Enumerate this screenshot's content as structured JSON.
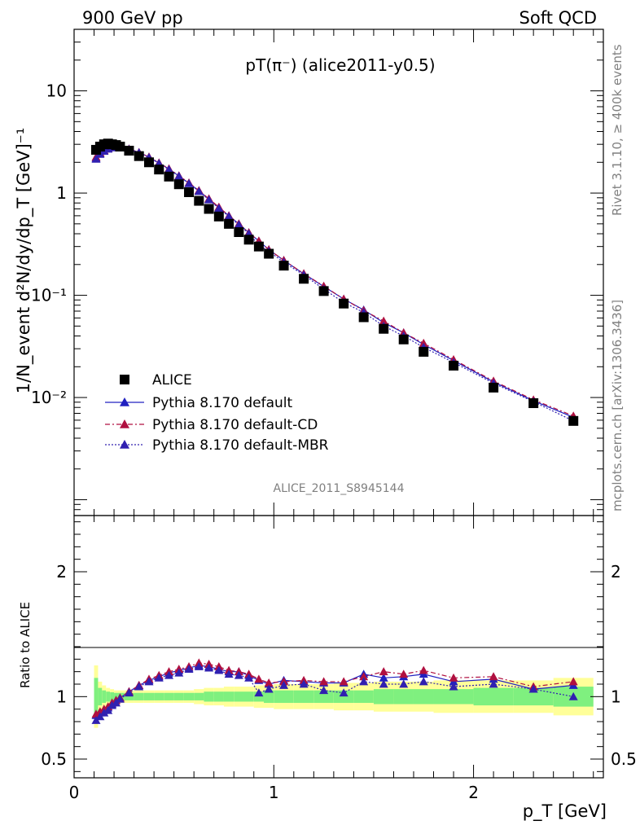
{
  "header": {
    "left": "900 GeV pp",
    "right": "Soft QCD"
  },
  "plot_title": "pT(π⁻) (alice2011-y0.5)",
  "analysis_label": "ALICE_2011_S8945144",
  "side_labels": {
    "rivet": "Rivet 3.1.10, ≥ 400k events",
    "mcplots": "mcplots.cern.ch [arXiv:1306.3436]"
  },
  "chart_data": [
    {
      "type": "scatter",
      "panel": "main",
      "ylabel": "1/N_event d²N/dy/dp_T [GeV]⁻¹",
      "yscale": "log",
      "ylim": [
        0.0007,
        40
      ],
      "xlim": [
        0,
        2.65
      ],
      "y_ticks": [
        "10⁻²",
        "10⁻¹",
        "1",
        "10"
      ],
      "legend_position": "lower-left",
      "x": [
        0.11,
        0.13,
        0.15,
        0.17,
        0.19,
        0.21,
        0.23,
        0.275,
        0.325,
        0.375,
        0.425,
        0.475,
        0.525,
        0.575,
        0.625,
        0.675,
        0.725,
        0.775,
        0.825,
        0.875,
        0.925,
        0.975,
        1.05,
        1.15,
        1.25,
        1.35,
        1.45,
        1.55,
        1.65,
        1.75,
        1.9,
        2.1,
        2.3,
        2.5
      ],
      "series": [
        {
          "name": "ALICE",
          "color": "#000000",
          "marker": "square",
          "values": [
            2.65,
            2.85,
            3.0,
            3.05,
            3.0,
            2.95,
            2.85,
            2.6,
            2.3,
            2.0,
            1.7,
            1.45,
            1.22,
            1.02,
            0.84,
            0.7,
            0.59,
            0.5,
            0.415,
            0.35,
            0.3,
            0.255,
            0.195,
            0.145,
            0.11,
            0.083,
            0.061,
            0.047,
            0.037,
            0.028,
            0.0205,
            0.0125,
            0.0088,
            0.0059
          ]
        },
        {
          "name": "Pythia 8.170 default",
          "color": "#2020c0",
          "marker": "triangle",
          "line": "solid",
          "values": [
            2.2,
            2.45,
            2.6,
            2.72,
            2.8,
            2.82,
            2.8,
            2.7,
            2.5,
            2.25,
            1.97,
            1.72,
            1.47,
            1.25,
            1.05,
            0.87,
            0.72,
            0.6,
            0.5,
            0.41,
            0.34,
            0.28,
            0.22,
            0.162,
            0.122,
            0.092,
            0.072,
            0.054,
            0.043,
            0.033,
            0.023,
            0.0142,
            0.0093,
            0.0064
          ]
        },
        {
          "name": "Pythia 8.170 default-CD",
          "color": "#b01040",
          "marker": "triangle",
          "line": "dashdot",
          "values": [
            2.25,
            2.48,
            2.62,
            2.74,
            2.82,
            2.83,
            2.8,
            2.7,
            2.5,
            2.26,
            1.98,
            1.73,
            1.48,
            1.26,
            1.06,
            0.88,
            0.73,
            0.6,
            0.5,
            0.41,
            0.34,
            0.28,
            0.22,
            0.163,
            0.123,
            0.092,
            0.071,
            0.056,
            0.043,
            0.034,
            0.0235,
            0.0145,
            0.0095,
            0.0066
          ]
        },
        {
          "name": "Pythia 8.170 default-MBR",
          "color": "#3020b0",
          "marker": "triangle",
          "line": "dotted",
          "values": [
            2.15,
            2.4,
            2.57,
            2.7,
            2.78,
            2.8,
            2.78,
            2.68,
            2.48,
            2.23,
            1.95,
            1.7,
            1.46,
            1.24,
            1.04,
            0.86,
            0.71,
            0.59,
            0.49,
            0.4,
            0.31,
            0.27,
            0.21,
            0.158,
            0.115,
            0.085,
            0.068,
            0.05,
            0.04,
            0.031,
            0.022,
            0.0138,
            0.0091,
            0.0059
          ]
        }
      ]
    },
    {
      "type": "scatter",
      "panel": "ratio",
      "xlabel": "p_T [GeV]",
      "ylabel": "Ratio to ALICE",
      "ylim": [
        0.35,
        2.45
      ],
      "xlim": [
        0,
        2.65
      ],
      "x_ticks": [
        "0",
        "1",
        "2"
      ],
      "y_ticks": [
        "0.5",
        "1",
        "2"
      ],
      "x": [
        0.11,
        0.13,
        0.15,
        0.17,
        0.19,
        0.21,
        0.23,
        0.275,
        0.325,
        0.375,
        0.425,
        0.475,
        0.525,
        0.575,
        0.625,
        0.675,
        0.725,
        0.775,
        0.825,
        0.875,
        0.925,
        0.975,
        1.05,
        1.15,
        1.25,
        1.35,
        1.45,
        1.55,
        1.65,
        1.75,
        1.9,
        2.1,
        2.3,
        2.5
      ],
      "band_edges": [
        0.1,
        0.12,
        0.14,
        0.16,
        0.18,
        0.2,
        0.22,
        0.25,
        0.3,
        0.35,
        0.4,
        0.45,
        0.5,
        0.55,
        0.6,
        0.65,
        0.7,
        0.75,
        0.8,
        0.85,
        0.9,
        0.95,
        1.0,
        1.1,
        1.2,
        1.3,
        1.4,
        1.5,
        1.6,
        1.7,
        1.8,
        2.0,
        2.2,
        2.4,
        2.6
      ],
      "band_inner": [
        0.15,
        0.07,
        0.05,
        0.04,
        0.035,
        0.03,
        0.03,
        0.03,
        0.03,
        0.03,
        0.03,
        0.03,
        0.03,
        0.03,
        0.03,
        0.04,
        0.04,
        0.04,
        0.04,
        0.04,
        0.04,
        0.05,
        0.05,
        0.05,
        0.05,
        0.05,
        0.05,
        0.06,
        0.06,
        0.06,
        0.06,
        0.07,
        0.07,
        0.08
      ],
      "band_outer": [
        0.25,
        0.12,
        0.09,
        0.07,
        0.06,
        0.05,
        0.05,
        0.05,
        0.05,
        0.05,
        0.05,
        0.05,
        0.05,
        0.05,
        0.06,
        0.07,
        0.07,
        0.08,
        0.08,
        0.08,
        0.09,
        0.09,
        0.1,
        0.1,
        0.1,
        0.11,
        0.11,
        0.12,
        0.12,
        0.12,
        0.13,
        0.13,
        0.13,
        0.15
      ],
      "band_colors": {
        "inner": "#7ff07f",
        "outer": "#ffff99"
      },
      "series": [
        {
          "name": "Pythia 8.170 default",
          "color": "#2020c0",
          "values": [
            0.85,
            0.87,
            0.89,
            0.91,
            0.94,
            0.97,
            0.99,
            1.04,
            1.09,
            1.13,
            1.16,
            1.19,
            1.21,
            1.23,
            1.25,
            1.24,
            1.22,
            1.2,
            1.2,
            1.17,
            1.13,
            1.1,
            1.13,
            1.12,
            1.11,
            1.11,
            1.18,
            1.15,
            1.16,
            1.18,
            1.12,
            1.14,
            1.06,
            1.09
          ]
        },
        {
          "name": "Pythia 8.170 default-CD",
          "color": "#b01040",
          "values": [
            0.86,
            0.88,
            0.9,
            0.92,
            0.95,
            0.97,
            0.99,
            1.04,
            1.09,
            1.14,
            1.17,
            1.2,
            1.22,
            1.24,
            1.27,
            1.26,
            1.24,
            1.21,
            1.2,
            1.18,
            1.14,
            1.11,
            1.12,
            1.13,
            1.12,
            1.12,
            1.16,
            1.2,
            1.18,
            1.21,
            1.15,
            1.16,
            1.08,
            1.12
          ]
        },
        {
          "name": "Pythia 8.170 default-MBR",
          "color": "#3020b0",
          "values": [
            0.81,
            0.84,
            0.87,
            0.89,
            0.93,
            0.95,
            0.98,
            1.03,
            1.08,
            1.12,
            1.15,
            1.17,
            1.19,
            1.22,
            1.24,
            1.23,
            1.21,
            1.18,
            1.17,
            1.15,
            1.03,
            1.06,
            1.09,
            1.1,
            1.05,
            1.03,
            1.12,
            1.1,
            1.1,
            1.12,
            1.08,
            1.1,
            1.06,
            1.0
          ]
        }
      ]
    }
  ]
}
